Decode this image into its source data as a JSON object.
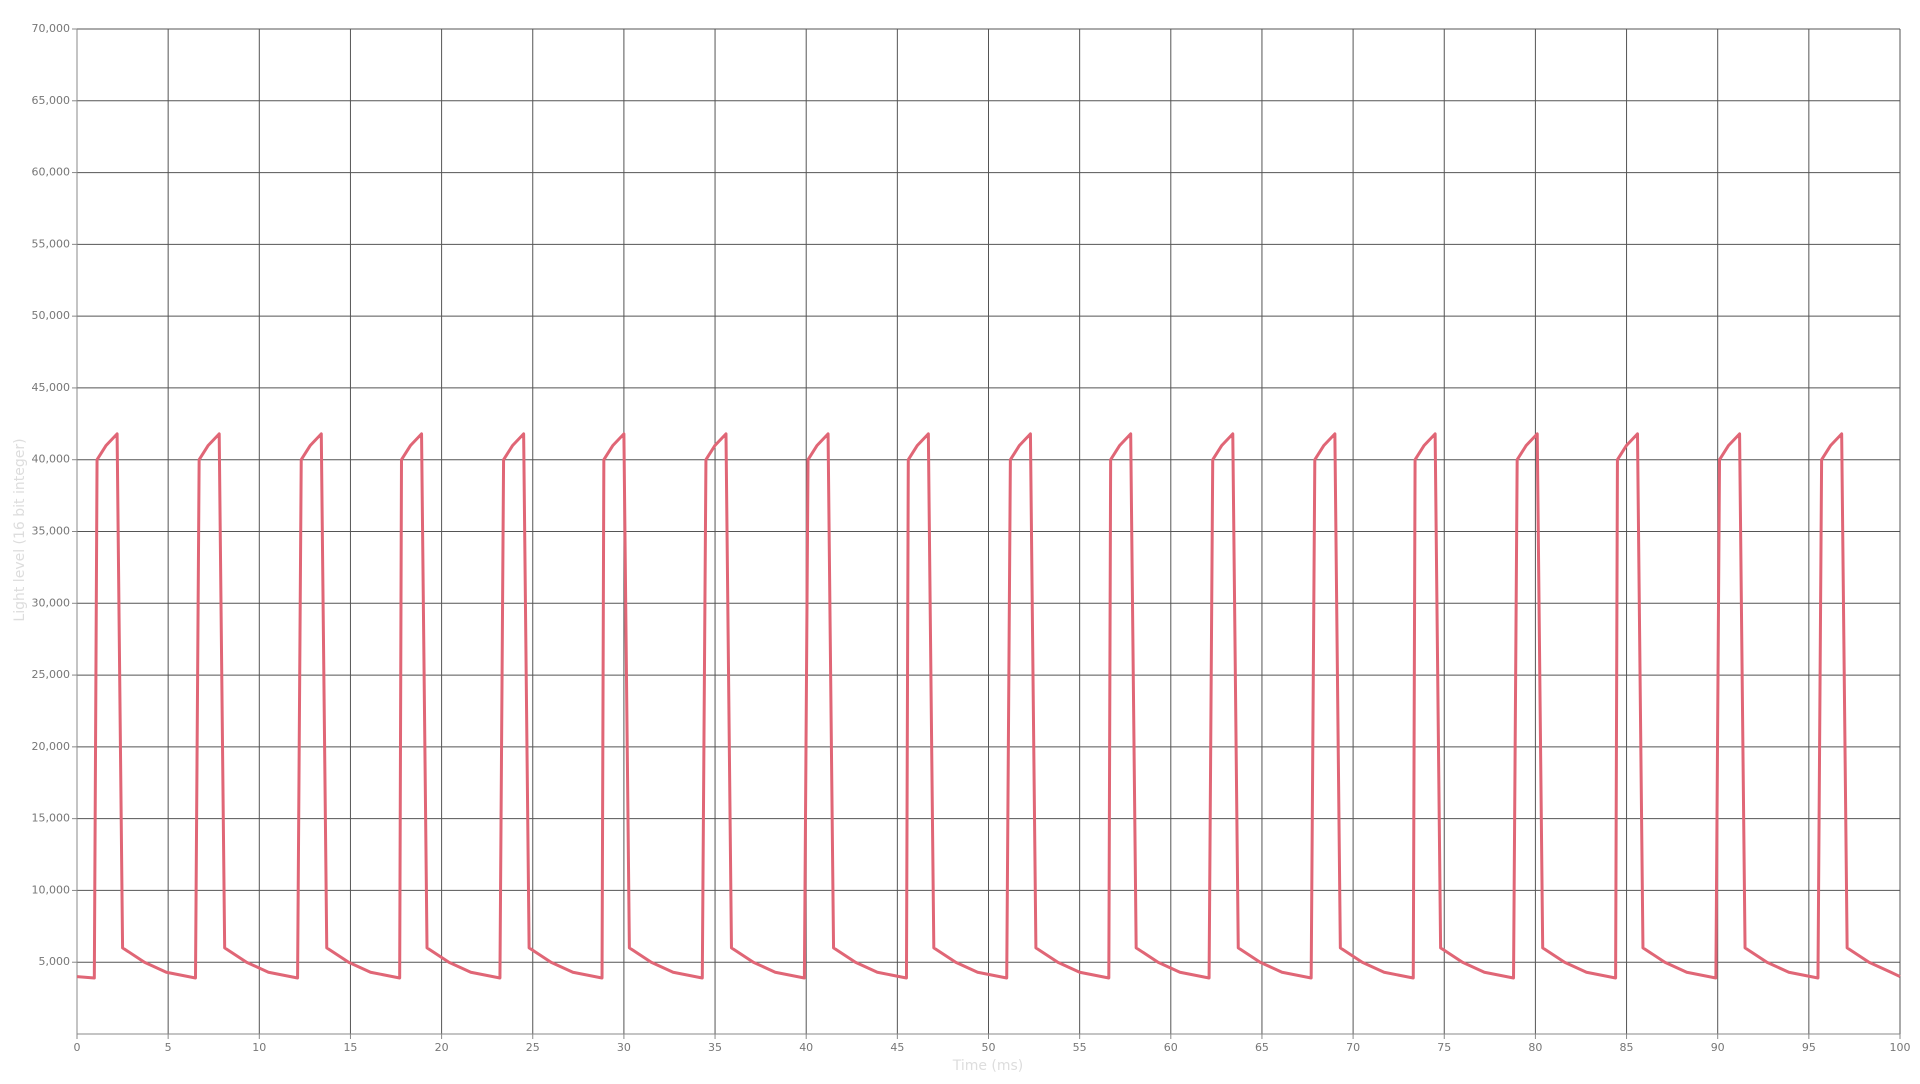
{
  "chart_data": {
    "type": "line",
    "xlabel": "Time (ms)",
    "ylabel": "Light level (16 bit integer)",
    "x": [
      0,
      0.95,
      1.1,
      1.6,
      2.2,
      2.5,
      3.7,
      4.9,
      6.5,
      6.7,
      7.2,
      7.8,
      8.1,
      9.3,
      10.5,
      12.1,
      12.3,
      12.8,
      13.4,
      13.7,
      14.9,
      16.1,
      17.7,
      17.8,
      18.3,
      18.9,
      19.2,
      20.4,
      21.6,
      23.2,
      23.4,
      23.9,
      24.5,
      24.8,
      26,
      27.2,
      28.8,
      28.9,
      29.4,
      30,
      30.3,
      31.5,
      32.7,
      34.3,
      34.5,
      35,
      35.6,
      35.9,
      37.1,
      38.3,
      39.9,
      40.1,
      40.6,
      41.2,
      41.5,
      42.7,
      43.9,
      45.5,
      45.6,
      46.1,
      46.7,
      47,
      48.2,
      49.4,
      51,
      51.2,
      51.7,
      52.3,
      52.6,
      53.8,
      55,
      56.6,
      56.7,
      57.2,
      57.8,
      58.1,
      59.3,
      60.5,
      62.1,
      62.3,
      62.8,
      63.4,
      63.7,
      64.9,
      66.1,
      67.7,
      67.9,
      68.4,
      69,
      69.3,
      70.5,
      71.7,
      73.3,
      73.4,
      73.9,
      74.5,
      74.8,
      76,
      77.2,
      78.8,
      79,
      79.5,
      80.1,
      80.4,
      81.6,
      82.8,
      84.4,
      84.5,
      85,
      85.6,
      85.9,
      87.1,
      88.3,
      89.9,
      90.1,
      90.6,
      91.2,
      91.5,
      92.7,
      93.9,
      95.5,
      95.7,
      96.2,
      96.8,
      97.1,
      98.3,
      99.5,
      100
    ],
    "series": [
      {
        "color": "#e06676",
        "values": [
          4000,
          3900,
          40000,
          41000,
          41800,
          6000,
          5000,
          4300,
          3900,
          40000,
          41000,
          41800,
          6000,
          5000,
          4300,
          3900,
          40000,
          41000,
          41800,
          6000,
          5000,
          4300,
          3900,
          40000,
          41000,
          41800,
          6000,
          5000,
          4300,
          3900,
          40000,
          41000,
          41800,
          6000,
          5000,
          4300,
          3900,
          40000,
          41000,
          41800,
          6000,
          5000,
          4300,
          3900,
          40000,
          41000,
          41800,
          6000,
          5000,
          4300,
          3900,
          40000,
          41000,
          41800,
          6000,
          5000,
          4300,
          3900,
          40000,
          41000,
          41800,
          6000,
          5000,
          4300,
          3900,
          40000,
          41000,
          41800,
          6000,
          5000,
          4300,
          3900,
          40000,
          41000,
          41800,
          6000,
          5000,
          4300,
          3900,
          40000,
          41000,
          41800,
          6000,
          5000,
          4300,
          3900,
          40000,
          41000,
          41800,
          6000,
          5000,
          4300,
          3900,
          40000,
          41000,
          41800,
          6000,
          5000,
          4300,
          3900,
          40000,
          41000,
          41800,
          6000,
          5000,
          4300,
          3900,
          40000,
          41000,
          41800,
          6000,
          5000,
          4300,
          3900,
          40000,
          41000,
          41800,
          6000,
          5000,
          4300,
          3900,
          40000,
          41000,
          41800,
          6000,
          5000,
          4300,
          4000
        ]
      }
    ],
    "xlim": [
      0,
      100
    ],
    "xticks": [
      0,
      5,
      10,
      15,
      20,
      25,
      30,
      35,
      40,
      45,
      50,
      55,
      60,
      65,
      70,
      75,
      80,
      85,
      90,
      95,
      100
    ],
    "ylim": [
      0,
      70000
    ],
    "yticks": [
      {
        "value": 5000,
        "label": "5,000"
      },
      {
        "value": 10000,
        "label": "10,000"
      },
      {
        "value": 15000,
        "label": "15,000"
      },
      {
        "value": 20000,
        "label": "20,000"
      },
      {
        "value": 25000,
        "label": "25,000"
      },
      {
        "value": 30000,
        "label": "30,000"
      },
      {
        "value": 35000,
        "label": "35,000"
      },
      {
        "value": 40000,
        "label": "40,000"
      },
      {
        "value": 45000,
        "label": "45,000"
      },
      {
        "value": 50000,
        "label": "50,000"
      },
      {
        "value": 55000,
        "label": "55,000"
      },
      {
        "value": 60000,
        "label": "60,000"
      },
      {
        "value": 65000,
        "label": "65,000"
      },
      {
        "value": 70000,
        "label": "70,000"
      }
    ],
    "grid": true
  }
}
